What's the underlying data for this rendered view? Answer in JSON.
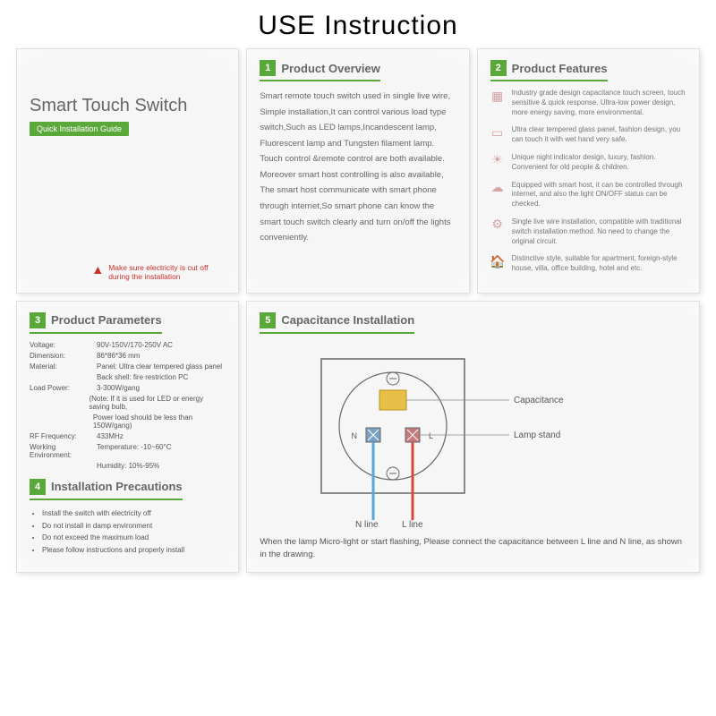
{
  "page_title": "USE Instruction",
  "cover": {
    "title": "Smart Touch Switch",
    "badge": "Quick Installation Guide",
    "warning": "Make sure electricity is cut off during the installation"
  },
  "overview": {
    "num": "1",
    "title": "Product Overview",
    "text": "Smart remote touch switch used in single live wire, Simple installation,It can control various load type switch,Such as LED lamps,Incandescent lamp, Fluorescent lamp and Tungsten filament lamp. Touch control &remote control are both available. Moreover smart host controlling is also available, The smart host communicate with smart phone through internet,So smart phone can know the smart touch switch clearly and turn on/off the lights conveniently."
  },
  "features": {
    "num": "2",
    "title": "Product Features",
    "items": [
      {
        "icon": "▦",
        "text": "Industry grade design capacitance touch screen, touch sensitive & quick response. Ultra-low power design, more energy saving, more environmental."
      },
      {
        "icon": "▭",
        "text": "Ultra clear tempered glass panel, fashion design, you can touch it with wet hand very safe."
      },
      {
        "icon": "☀",
        "text": "Unique night indicator design, luxury, fashion. Convenient for old people & children."
      },
      {
        "icon": "☁",
        "text": "Equipped with smart host, it can be controlled through internet, and also the light ON/OFF status can be checked."
      },
      {
        "icon": "⚙",
        "text": "Single live wire installation, compatible with traditional switch installation method. No need to change the original circuit."
      },
      {
        "icon": "🏠",
        "text": "Distinctive style, suitable for apartment, foreign-style house, villa, office building, hotel and etc."
      }
    ]
  },
  "parameters": {
    "num": "3",
    "title": "Product Parameters",
    "rows": [
      {
        "label": "Voltage:",
        "value": "90V-150V/170-250V AC"
      },
      {
        "label": "Dimension:",
        "value": "86*86*36 mm"
      },
      {
        "label": "Material:",
        "value": "Panel: Ultra clear tempered glass panel"
      },
      {
        "label": "",
        "value": "Back shell: fire restriction PC"
      },
      {
        "label": "Load Power:",
        "value": "3-300W/gang"
      },
      {
        "label": "",
        "value": "(Note: If it is used for LED or energy saving bulb,"
      },
      {
        "label": "",
        "value": "Power load should be less than 150W/gang)"
      },
      {
        "label": "RF Frequency:",
        "value": "433MHz"
      },
      {
        "label": "Working Environment:",
        "value": "Temperature: -10~60°C"
      },
      {
        "label": "",
        "value": "Humidity: 10%-95%"
      }
    ]
  },
  "precautions": {
    "num": "4",
    "title": "Installation Precautions",
    "items": [
      "Install the switch with electricity off",
      "Do not install in damp environment",
      "Do not exceed the maximum load",
      "Please follow instructions and properly install"
    ]
  },
  "installation": {
    "num": "5",
    "title": "Capacitance Installation",
    "labels": {
      "capacitance": "Capacitance",
      "lamp_stand": "Lamp stand",
      "n_line": "N line",
      "l_line": "L line",
      "n": "N",
      "l": "L"
    },
    "note": "When the lamp Micro-light or start flashing, Please connect the capacitance between L line and N line, as shown in the drawing.",
    "colors": {
      "n_wire": "#5aa8d8",
      "l_wire": "#d84a3a",
      "box_stroke": "#666666",
      "cap_fill": "#e8c048"
    }
  }
}
